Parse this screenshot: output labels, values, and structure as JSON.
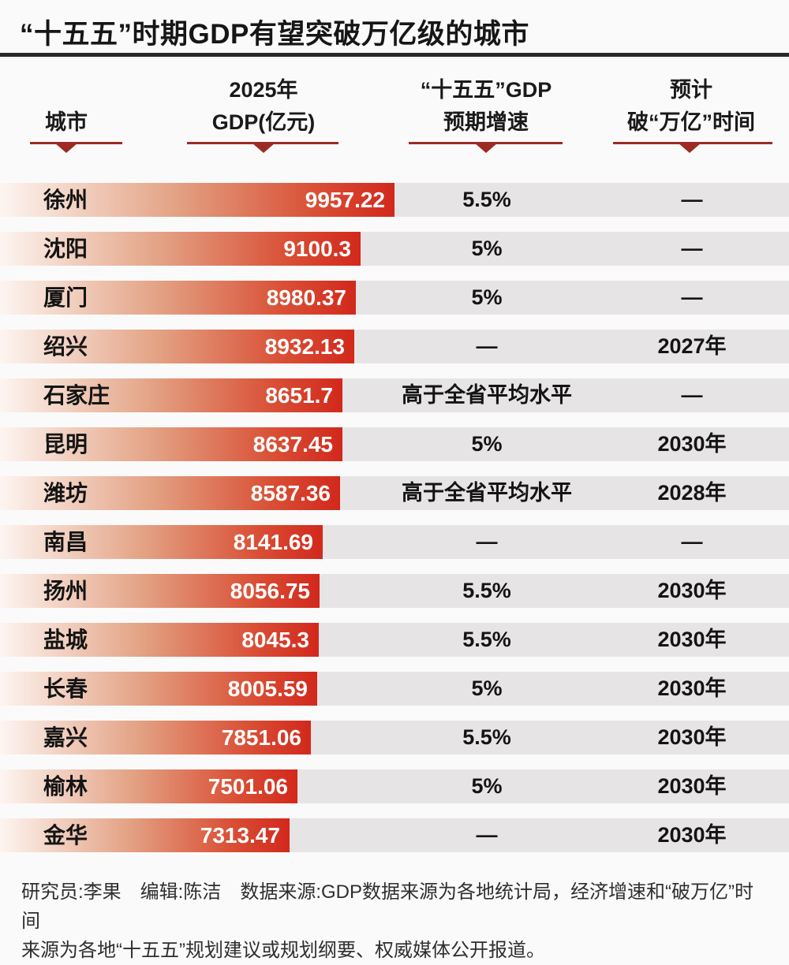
{
  "title": "“十五五”时期GDP有望突破万亿级的城市",
  "columns": [
    {
      "line1": "",
      "line2": "城市"
    },
    {
      "line1": "2025年",
      "line2": "GDP(亿元)"
    },
    {
      "line1": "“十五五”GDP",
      "line2": "预期增速"
    },
    {
      "line1": "预计",
      "line2": "破“万亿”时间"
    }
  ],
  "footer": {
    "line1": "研究员:李果　编辑:陈洁　数据来源:GDP数据来源为各地统计局，经济增速和“破万亿”时间",
    "line2": "来源为各地“十五五”规划建议或规划纲要、权威媒体公开报道。"
  },
  "colors": {
    "accent_dark_red": "#9c2b23",
    "bar_red_end": "#d2281c",
    "bar_light_start": "#fdf5f1",
    "row_gray": "#e6e4e4",
    "title_rule": "#2a2a2a"
  },
  "chart_data": {
    "type": "bar",
    "orientation": "horizontal",
    "title": "“十五五”时期GDP有望突破万亿级的城市",
    "value_label": "2025年GDP(亿元)",
    "categories": [
      "徐州",
      "沈阳",
      "厦门",
      "绍兴",
      "石家庄",
      "昆明",
      "潍坊",
      "南昌",
      "扬州",
      "盐城",
      "长春",
      "嘉兴",
      "榆林",
      "金华"
    ],
    "values": [
      9957.22,
      9100.3,
      8980.37,
      8932.13,
      8651.7,
      8637.45,
      8587.36,
      8141.69,
      8056.75,
      8045.3,
      8005.59,
      7851.06,
      7501.06,
      7313.47
    ],
    "value_labels": [
      "9957.22",
      "9100.3",
      "8980.37",
      "8932.13",
      "8651.7",
      "8637.45",
      "8587.36",
      "8141.69",
      "8056.75",
      "8045.3",
      "8005.59",
      "7851.06",
      "7501.06",
      "7313.47"
    ],
    "growth": [
      "5.5%",
      "5%",
      "5%",
      "—",
      "高于全省平均水平",
      "5%",
      "高于全省平均水平",
      "—",
      "5.5%",
      "5.5%",
      "5%",
      "5.5%",
      "5%",
      "—"
    ],
    "breakthrough_year": [
      "—",
      "—",
      "—",
      "2027年",
      "—",
      "2030年",
      "2028年",
      "—",
      "2030年",
      "2030年",
      "2030年",
      "2030年",
      "2030年",
      "2030年"
    ],
    "xlim": [
      0,
      9957.22
    ],
    "grid": false,
    "legend": "none"
  }
}
